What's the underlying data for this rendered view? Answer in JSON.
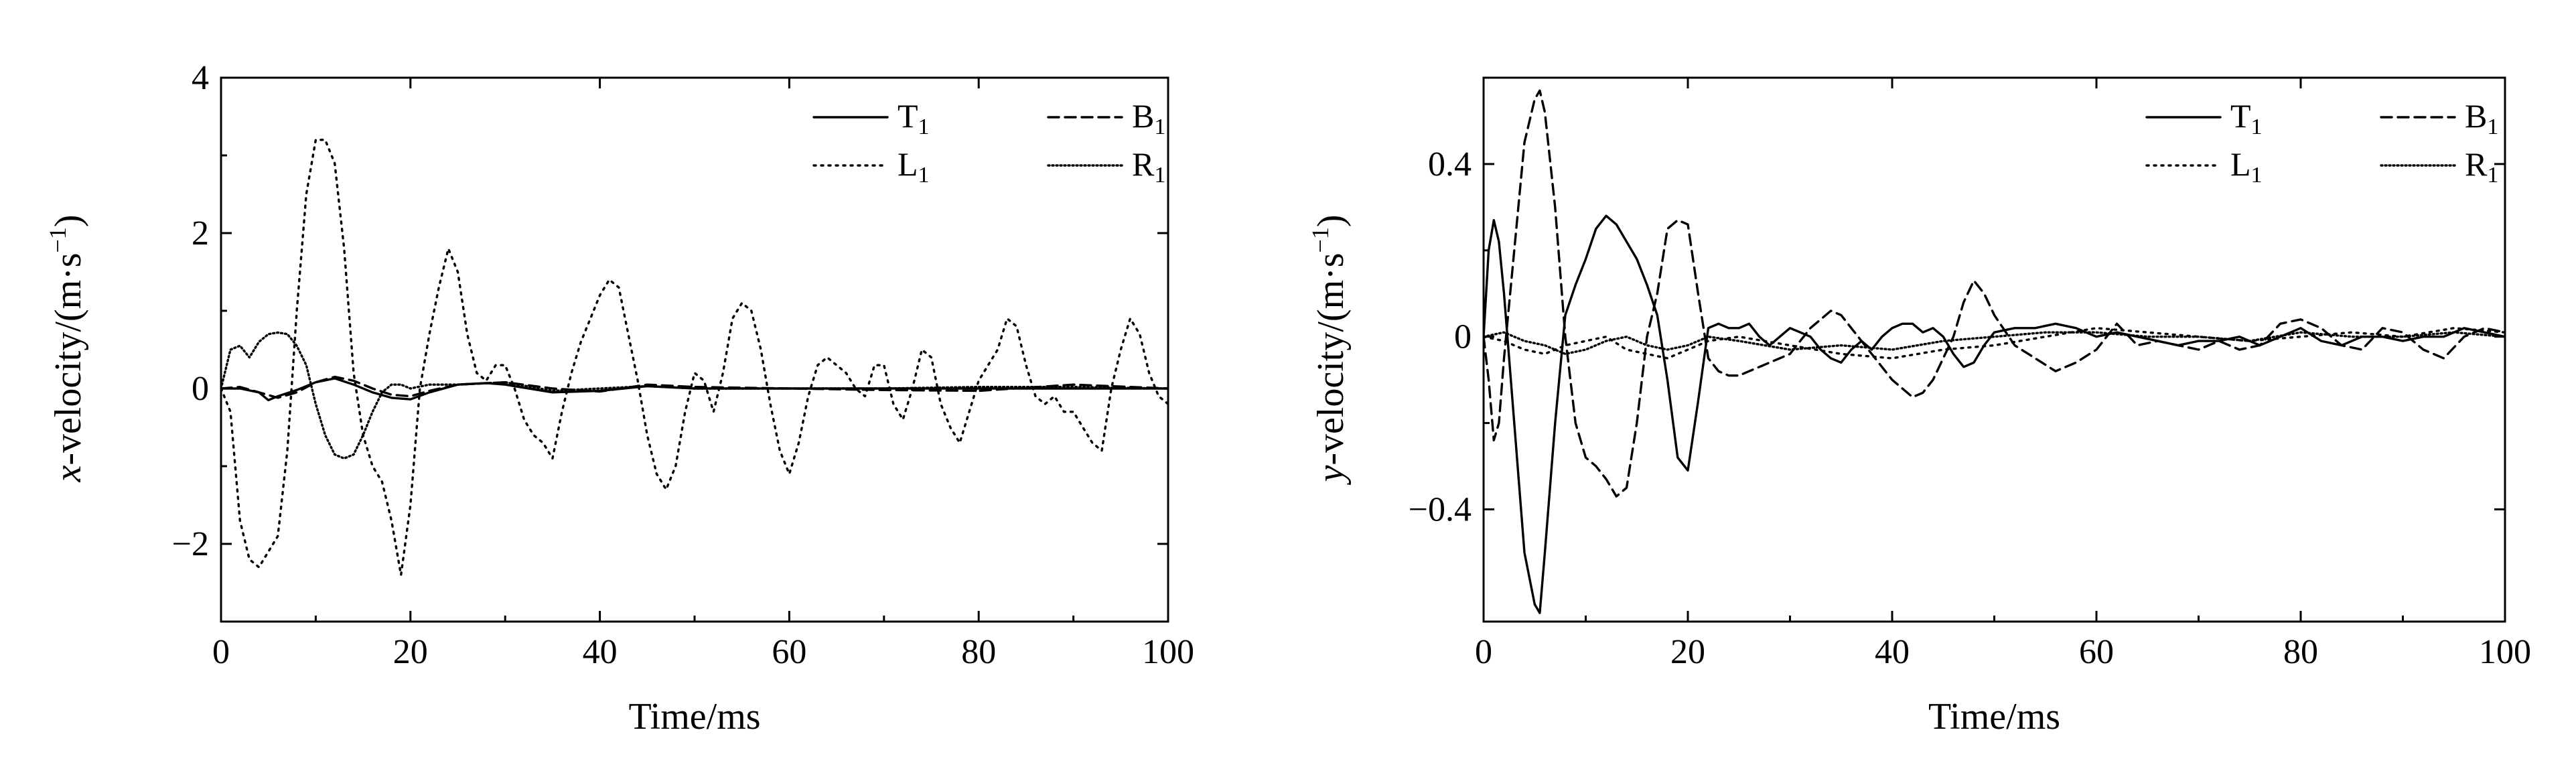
{
  "chart_data": [
    {
      "type": "line",
      "xlabel": "Time/ms",
      "ylabel": "x-velocity/(m·s⁻¹)",
      "ylabel_var": "x",
      "ylabel_rest": "-velocity/(m·s",
      "ylabel_exp": "−1",
      "ylabel_close": ")",
      "xlim": [
        0,
        100
      ],
      "ylim": [
        -3,
        4
      ],
      "xticks": [
        0,
        20,
        40,
        60,
        80,
        100
      ],
      "xtick_labels": [
        "0",
        "20",
        "40",
        "60",
        "80",
        "100"
      ],
      "yticks": [
        -2,
        0,
        2,
        4
      ],
      "ytick_labels": [
        "−2",
        "0",
        "2",
        "4"
      ],
      "legend_position": "top-right",
      "series": [
        {
          "name": "T1",
          "label": "T",
          "sub": "1",
          "style": "solid",
          "x": [
            0,
            2,
            4,
            5,
            6,
            8,
            10,
            12,
            14,
            16,
            18,
            20,
            22,
            25,
            28,
            30,
            35,
            40,
            45,
            50,
            60,
            70,
            80,
            90,
            100
          ],
          "y": [
            0,
            0,
            -0.05,
            -0.15,
            -0.1,
            -0.02,
            0.08,
            0.13,
            0.05,
            -0.05,
            -0.12,
            -0.14,
            -0.05,
            0.05,
            0.07,
            0.05,
            -0.05,
            -0.03,
            0.03,
            0.0,
            0.0,
            0.0,
            0.0,
            0.0,
            0.0
          ]
        },
        {
          "name": "B1",
          "label": "B",
          "sub": "1",
          "style": "dashed",
          "x": [
            0,
            2,
            4,
            6,
            8,
            10,
            12,
            14,
            16,
            18,
            20,
            22,
            25,
            30,
            35,
            40,
            45,
            50,
            60,
            70,
            80,
            90,
            100
          ],
          "y": [
            0,
            0.02,
            -0.05,
            -0.12,
            -0.05,
            0.08,
            0.15,
            0.1,
            0.0,
            -0.08,
            -0.1,
            -0.03,
            0.05,
            0.08,
            0.0,
            -0.04,
            0.05,
            0.02,
            0.0,
            -0.02,
            -0.03,
            0.05,
            0.0
          ]
        },
        {
          "name": "L1",
          "label": "L",
          "sub": "1",
          "style": "dotted",
          "x": [
            0,
            1,
            2,
            3,
            4,
            5,
            6,
            7,
            8,
            9,
            10,
            11,
            12,
            13,
            14,
            15,
            16,
            17,
            18,
            19,
            20,
            21,
            22,
            23,
            24,
            25,
            26,
            27,
            28,
            29,
            30,
            31,
            32,
            33,
            34,
            35,
            36,
            37,
            38,
            39,
            40,
            41,
            42,
            43,
            44,
            45,
            46,
            47,
            48,
            49,
            50,
            51,
            52,
            53,
            54,
            55,
            56,
            57,
            58,
            59,
            60,
            61,
            62,
            63,
            64,
            65,
            66,
            67,
            68,
            69,
            70,
            71,
            72,
            73,
            74,
            75,
            76,
            77,
            78,
            79,
            80,
            81,
            82,
            83,
            84,
            85,
            86,
            87,
            88,
            89,
            90,
            91,
            92,
            93,
            94,
            95,
            96,
            97,
            98,
            99,
            100
          ],
          "y": [
            0,
            -0.3,
            -1.7,
            -2.2,
            -2.3,
            -2.1,
            -1.9,
            -0.8,
            1.0,
            2.5,
            3.2,
            3.2,
            2.9,
            1.8,
            0.2,
            -0.6,
            -1.0,
            -1.2,
            -1.7,
            -2.4,
            -1.5,
            0.0,
            0.7,
            1.3,
            1.8,
            1.5,
            0.7,
            0.2,
            0.1,
            0.3,
            0.3,
            0.0,
            -0.4,
            -0.6,
            -0.7,
            -0.9,
            -0.3,
            0.2,
            0.6,
            0.9,
            1.2,
            1.4,
            1.3,
            0.7,
            0.1,
            -0.6,
            -1.1,
            -1.3,
            -1.0,
            -0.3,
            0.2,
            0.1,
            -0.3,
            0.2,
            0.9,
            1.1,
            1.0,
            0.5,
            -0.2,
            -0.8,
            -1.1,
            -0.7,
            -0.1,
            0.3,
            0.4,
            0.3,
            0.2,
            0.0,
            -0.1,
            0.3,
            0.3,
            -0.2,
            -0.4,
            0.0,
            0.5,
            0.4,
            -0.2,
            -0.5,
            -0.7,
            -0.3,
            0.1,
            0.3,
            0.5,
            0.9,
            0.8,
            0.3,
            -0.1,
            -0.2,
            -0.1,
            -0.3,
            -0.3,
            -0.5,
            -0.7,
            -0.8,
            0.0,
            0.5,
            0.9,
            0.7,
            0.2,
            -0.1,
            -0.2
          ]
        },
        {
          "name": "R1",
          "label": "R",
          "sub": "1",
          "style": "fine-dotted",
          "x": [
            0,
            1,
            2,
            3,
            4,
            5,
            6,
            7,
            8,
            9,
            10,
            11,
            12,
            13,
            14,
            15,
            16,
            17,
            18,
            19,
            20,
            22,
            25,
            30,
            35,
            40,
            45,
            50,
            60,
            70,
            80,
            90,
            100
          ],
          "y": [
            0,
            0.5,
            0.55,
            0.4,
            0.6,
            0.7,
            0.72,
            0.7,
            0.55,
            0.3,
            -0.2,
            -0.6,
            -0.85,
            -0.9,
            -0.85,
            -0.6,
            -0.3,
            -0.05,
            0.05,
            0.05,
            0.0,
            0.05,
            0.05,
            0.08,
            -0.03,
            0.0,
            0.03,
            0.0,
            0.0,
            0.0,
            0.02,
            0.02,
            0.0
          ]
        }
      ]
    },
    {
      "type": "line",
      "xlabel": "Time/ms",
      "ylabel": "y-velocity/(m·s⁻¹)",
      "ylabel_var": "y",
      "ylabel_rest": "-velocity/(m·s",
      "ylabel_exp": "−1",
      "ylabel_close": ")",
      "xlim": [
        0,
        100
      ],
      "ylim": [
        -0.66,
        0.6
      ],
      "xticks": [
        0,
        20,
        40,
        60,
        80,
        100
      ],
      "xtick_labels": [
        "0",
        "20",
        "40",
        "60",
        "80",
        "100"
      ],
      "yticks": [
        -0.4,
        0,
        0.4
      ],
      "ytick_labels": [
        "−0.4",
        "0",
        "0.4"
      ],
      "legend_position": "top-right",
      "series": [
        {
          "name": "T1",
          "label": "T",
          "sub": "1",
          "style": "solid",
          "x": [
            0,
            0.5,
            1,
            1.5,
            2,
            3,
            4,
            5,
            5.5,
            6,
            7,
            8,
            9,
            10,
            11,
            12,
            13,
            14,
            15,
            16,
            17,
            18,
            19,
            20,
            21,
            22,
            23,
            24,
            25,
            26,
            27,
            28,
            29,
            30,
            31,
            32,
            33,
            34,
            35,
            36,
            37,
            38,
            39,
            40,
            41,
            42,
            43,
            44,
            45,
            46,
            47,
            48,
            49,
            50,
            52,
            54,
            56,
            58,
            60,
            62,
            64,
            66,
            68,
            70,
            72,
            74,
            76,
            78,
            80,
            82,
            84,
            86,
            88,
            90,
            92,
            94,
            96,
            98,
            100
          ],
          "y": [
            0,
            0.2,
            0.27,
            0.22,
            0.1,
            -0.2,
            -0.5,
            -0.62,
            -0.64,
            -0.5,
            -0.2,
            0.05,
            0.12,
            0.18,
            0.25,
            0.28,
            0.26,
            0.22,
            0.18,
            0.12,
            0.05,
            -0.1,
            -0.28,
            -0.31,
            -0.15,
            0.02,
            0.03,
            0.02,
            0.02,
            0.03,
            0.0,
            -0.02,
            0.0,
            0.02,
            0.01,
            0.0,
            -0.03,
            -0.05,
            -0.06,
            -0.03,
            -0.01,
            -0.03,
            0.0,
            0.02,
            0.03,
            0.03,
            0.01,
            0.02,
            0.0,
            -0.04,
            -0.07,
            -0.06,
            -0.02,
            0.01,
            0.02,
            0.02,
            0.03,
            0.02,
            0.0,
            0.01,
            0.0,
            -0.01,
            -0.02,
            -0.01,
            -0.01,
            0.0,
            -0.02,
            0.0,
            0.02,
            -0.01,
            -0.02,
            0.0,
            0.0,
            -0.01,
            0.0,
            0.0,
            0.02,
            0.01,
            0.0
          ]
        },
        {
          "name": "B1",
          "label": "B",
          "sub": "1",
          "style": "dashed",
          "x": [
            0,
            0.5,
            1,
            1.5,
            2,
            3,
            4,
            5,
            5.5,
            6,
            7,
            8,
            9,
            10,
            11,
            12,
            13,
            14,
            15,
            16,
            17,
            18,
            19,
            20,
            21,
            22,
            23,
            24,
            25,
            26,
            28,
            30,
            32,
            33,
            34,
            35,
            36,
            38,
            40,
            42,
            43,
            44,
            46,
            47,
            48,
            49,
            50,
            52,
            54,
            56,
            58,
            60,
            62,
            64,
            66,
            68,
            70,
            72,
            74,
            76,
            78,
            80,
            82,
            84,
            86,
            88,
            90,
            92,
            94,
            96,
            98,
            100
          ],
          "y": [
            0,
            -0.1,
            -0.24,
            -0.2,
            -0.05,
            0.2,
            0.45,
            0.55,
            0.57,
            0.52,
            0.3,
            0.0,
            -0.2,
            -0.28,
            -0.3,
            -0.33,
            -0.37,
            -0.35,
            -0.2,
            0.0,
            0.1,
            0.25,
            0.27,
            0.26,
            0.1,
            -0.05,
            -0.08,
            -0.09,
            -0.09,
            -0.08,
            -0.06,
            -0.04,
            0.02,
            0.04,
            0.06,
            0.05,
            0.02,
            -0.04,
            -0.1,
            -0.14,
            -0.13,
            -0.1,
            0.0,
            0.08,
            0.13,
            0.1,
            0.05,
            -0.02,
            -0.05,
            -0.08,
            -0.06,
            -0.03,
            0.03,
            -0.02,
            -0.01,
            -0.02,
            -0.03,
            -0.01,
            -0.03,
            -0.02,
            0.03,
            0.04,
            0.02,
            -0.02,
            -0.03,
            0.02,
            0.01,
            -0.03,
            -0.05,
            0.0,
            0.02,
            0.01
          ]
        },
        {
          "name": "L1",
          "label": "L",
          "sub": "1",
          "style": "dotted",
          "x": [
            0,
            2,
            4,
            6,
            8,
            10,
            12,
            14,
            16,
            18,
            20,
            22,
            25,
            30,
            35,
            40,
            45,
            50,
            55,
            60,
            65,
            70,
            75,
            80,
            85,
            90,
            95,
            100
          ],
          "y": [
            0,
            -0.01,
            -0.03,
            -0.04,
            -0.02,
            -0.01,
            0.0,
            -0.03,
            -0.04,
            -0.05,
            -0.03,
            -0.01,
            0.0,
            -0.02,
            -0.04,
            -0.05,
            -0.03,
            -0.02,
            0.0,
            0.02,
            0.01,
            0.0,
            -0.01,
            0.0,
            0.01,
            0.0,
            0.02,
            0.01
          ]
        },
        {
          "name": "R1",
          "label": "R",
          "sub": "1",
          "style": "fine-dotted",
          "x": [
            0,
            2,
            4,
            6,
            8,
            10,
            12,
            14,
            16,
            18,
            20,
            22,
            25,
            30,
            35,
            40,
            45,
            50,
            55,
            60,
            65,
            70,
            75,
            80,
            85,
            90,
            95,
            100
          ],
          "y": [
            0,
            0.01,
            -0.01,
            -0.02,
            -0.04,
            -0.03,
            -0.01,
            0.0,
            -0.02,
            -0.03,
            -0.02,
            0.0,
            -0.01,
            -0.03,
            -0.02,
            -0.03,
            -0.01,
            0.0,
            0.01,
            0.01,
            0.0,
            0.0,
            -0.01,
            0.01,
            0.0,
            0.0,
            0.01,
            0.0
          ]
        }
      ]
    }
  ]
}
